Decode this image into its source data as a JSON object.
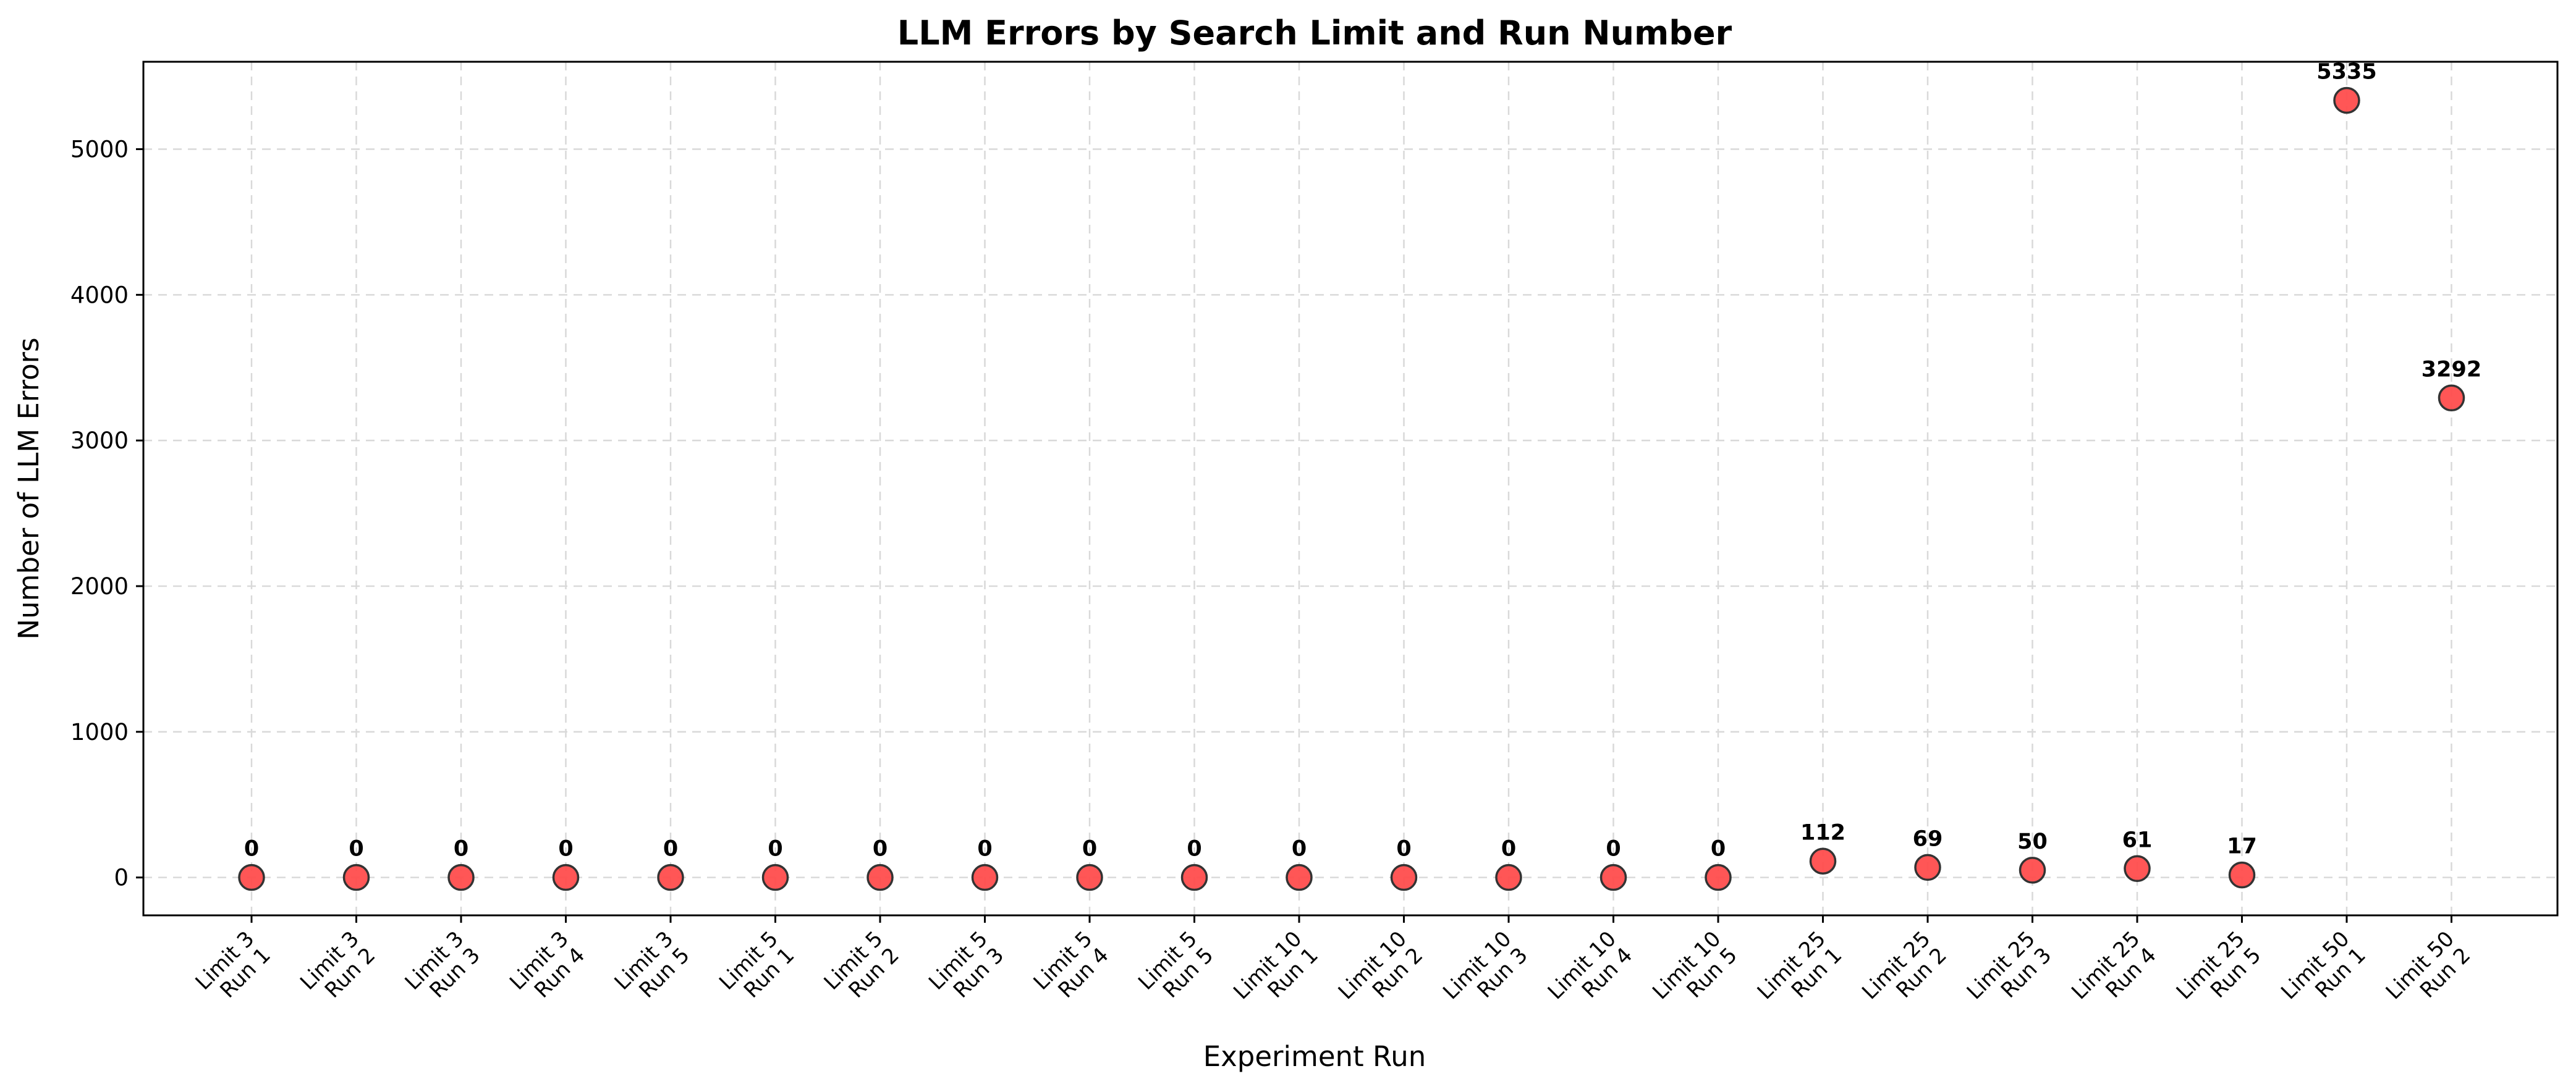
{
  "chart_data": {
    "type": "scatter",
    "title": "LLM Errors by Search Limit and Run Number",
    "xlabel": "Experiment Run",
    "ylabel": "Number of LLM Errors",
    "ylim": [
      -260,
      5600
    ],
    "yticks": [
      0,
      1000,
      2000,
      3000,
      4000,
      5000
    ],
    "grid": true,
    "marker_color": "#ff4d4d",
    "marker_edge_color": "#333333",
    "categories": [
      [
        "Limit 3",
        "Run 1"
      ],
      [
        "Limit 3",
        "Run 2"
      ],
      [
        "Limit 3",
        "Run 3"
      ],
      [
        "Limit 3",
        "Run 4"
      ],
      [
        "Limit 3",
        "Run 5"
      ],
      [
        "Limit 5",
        "Run 1"
      ],
      [
        "Limit 5",
        "Run 2"
      ],
      [
        "Limit 5",
        "Run 3"
      ],
      [
        "Limit 5",
        "Run 4"
      ],
      [
        "Limit 5",
        "Run 5"
      ],
      [
        "Limit 10",
        "Run 1"
      ],
      [
        "Limit 10",
        "Run 2"
      ],
      [
        "Limit 10",
        "Run 3"
      ],
      [
        "Limit 10",
        "Run 4"
      ],
      [
        "Limit 10",
        "Run 5"
      ],
      [
        "Limit 25",
        "Run 1"
      ],
      [
        "Limit 25",
        "Run 2"
      ],
      [
        "Limit 25",
        "Run 3"
      ],
      [
        "Limit 25",
        "Run 4"
      ],
      [
        "Limit 25",
        "Run 5"
      ],
      [
        "Limit 50",
        "Run 1"
      ],
      [
        "Limit 50",
        "Run 2"
      ]
    ],
    "values": [
      0,
      0,
      0,
      0,
      0,
      0,
      0,
      0,
      0,
      0,
      0,
      0,
      0,
      0,
      0,
      112,
      69,
      50,
      61,
      17,
      5335,
      3292
    ]
  }
}
